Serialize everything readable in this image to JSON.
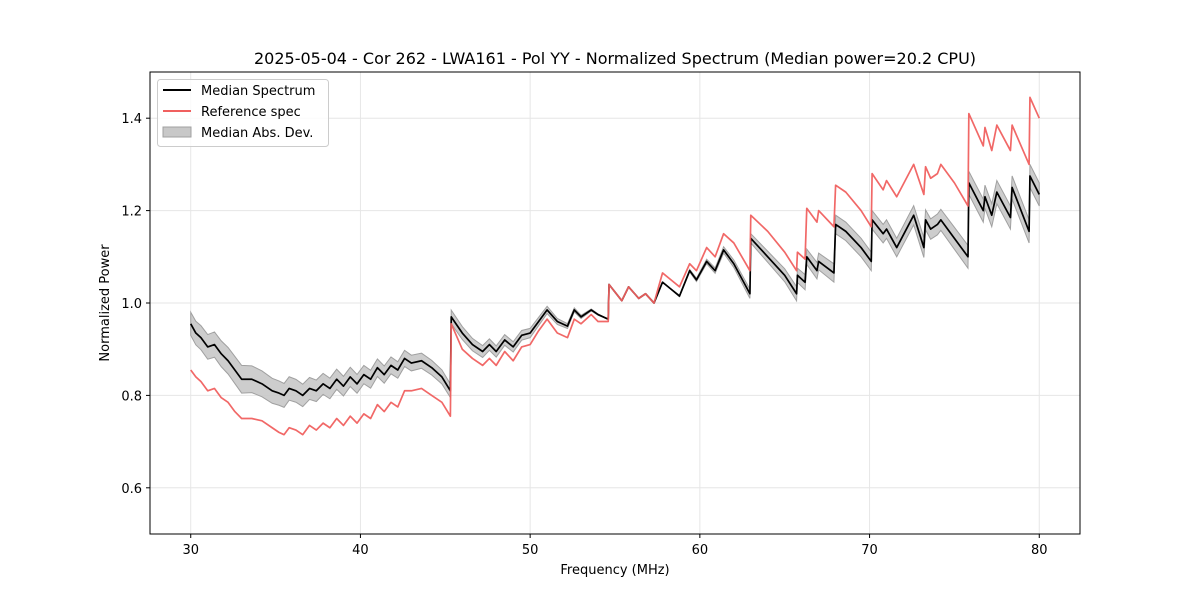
{
  "chart_data": {
    "type": "line",
    "title": "2025-05-04 - Cor 262 - LWA161 - Pol YY - Normalized Spectrum (Median power=20.2 CPU)",
    "xlabel": "Frequency (MHz)",
    "ylabel": "Normalized Power",
    "xlim": [
      27.6,
      82.4
    ],
    "ylim": [
      0.5,
      1.5
    ],
    "xticks": [
      30,
      40,
      50,
      60,
      70,
      80
    ],
    "yticks": [
      0.6,
      0.8,
      1.0,
      1.2,
      1.4
    ],
    "xtick_labels": [
      "30",
      "40",
      "50",
      "60",
      "70",
      "80"
    ],
    "ytick_labels": [
      "0.6",
      "0.8",
      "1.0",
      "1.2",
      "1.4"
    ],
    "grid": true,
    "legend_position": "top-left",
    "legend": [
      {
        "label": "Median Spectrum",
        "kind": "line",
        "color": "#000000"
      },
      {
        "label": "Reference spec",
        "kind": "line",
        "color": "#f0605f"
      },
      {
        "label": "Median Abs. Dev.",
        "kind": "band",
        "color": "#c8c8c8"
      }
    ],
    "series": [
      {
        "name": "Median Spectrum",
        "color": "#000000",
        "x": [
          30.0,
          30.3,
          30.6,
          31.0,
          31.4,
          31.8,
          32.2,
          32.6,
          33.0,
          33.6,
          34.2,
          34.8,
          35.2,
          35.5,
          35.8,
          36.2,
          36.6,
          37.0,
          37.4,
          37.8,
          38.2,
          38.6,
          39.0,
          39.4,
          39.8,
          40.2,
          40.6,
          41.0,
          41.4,
          41.8,
          42.2,
          42.6,
          43.0,
          43.6,
          44.2,
          44.8,
          45.3,
          45.35,
          46.0,
          46.6,
          47.2,
          47.6,
          48.0,
          48.5,
          49.0,
          49.5,
          50.0,
          50.5,
          51.0,
          51.6,
          52.2,
          52.6,
          53.0,
          53.6,
          54.0,
          54.6,
          54.65,
          55.4,
          55.8,
          56.4,
          56.8,
          57.3,
          57.8,
          58.3,
          58.8,
          59.4,
          59.8,
          60.4,
          60.9,
          61.4,
          62.0,
          62.95,
          63.0,
          64.0,
          65.0,
          65.7,
          65.75,
          66.2,
          66.3,
          66.9,
          67.0,
          67.9,
          68.0,
          68.6,
          69.5,
          70.1,
          70.15,
          70.8,
          71.0,
          71.6,
          72.6,
          73.2,
          73.3,
          73.6,
          74.0,
          74.2,
          75.0,
          75.8,
          75.85,
          76.7,
          76.8,
          77.2,
          77.5,
          78.3,
          78.4,
          79.4,
          79.45,
          80.0
        ],
        "values": [
          0.955,
          0.935,
          0.925,
          0.905,
          0.91,
          0.89,
          0.875,
          0.855,
          0.835,
          0.835,
          0.825,
          0.81,
          0.805,
          0.8,
          0.815,
          0.81,
          0.8,
          0.815,
          0.81,
          0.825,
          0.815,
          0.835,
          0.82,
          0.84,
          0.825,
          0.845,
          0.835,
          0.86,
          0.845,
          0.865,
          0.855,
          0.88,
          0.87,
          0.875,
          0.86,
          0.84,
          0.81,
          0.97,
          0.935,
          0.91,
          0.895,
          0.91,
          0.895,
          0.92,
          0.905,
          0.93,
          0.935,
          0.96,
          0.985,
          0.96,
          0.95,
          0.985,
          0.97,
          0.985,
          0.975,
          0.965,
          1.04,
          1.005,
          1.035,
          1.01,
          1.02,
          1.0,
          1.045,
          1.03,
          1.015,
          1.07,
          1.05,
          1.09,
          1.07,
          1.115,
          1.085,
          1.02,
          1.14,
          1.1,
          1.06,
          1.02,
          1.06,
          1.045,
          1.1,
          1.07,
          1.09,
          1.065,
          1.17,
          1.155,
          1.12,
          1.09,
          1.18,
          1.15,
          1.16,
          1.12,
          1.19,
          1.12,
          1.18,
          1.16,
          1.17,
          1.18,
          1.14,
          1.1,
          1.26,
          1.2,
          1.23,
          1.19,
          1.24,
          1.185,
          1.25,
          1.155,
          1.275,
          1.235
        ]
      },
      {
        "name": "Reference spec",
        "color": "#f0605f",
        "x": [
          30.0,
          30.3,
          30.6,
          31.0,
          31.4,
          31.8,
          32.2,
          32.6,
          33.0,
          33.6,
          34.2,
          34.8,
          35.2,
          35.5,
          35.8,
          36.2,
          36.6,
          37.0,
          37.4,
          37.8,
          38.2,
          38.6,
          39.0,
          39.4,
          39.8,
          40.2,
          40.6,
          41.0,
          41.4,
          41.8,
          42.2,
          42.6,
          43.0,
          43.6,
          44.2,
          44.8,
          45.3,
          45.35,
          46.0,
          46.6,
          47.2,
          47.6,
          48.0,
          48.5,
          49.0,
          49.5,
          50.0,
          50.5,
          51.0,
          51.6,
          52.2,
          52.6,
          53.0,
          53.6,
          54.0,
          54.6,
          54.65,
          55.4,
          55.8,
          56.4,
          56.8,
          57.3,
          57.8,
          58.3,
          58.8,
          59.4,
          59.8,
          60.4,
          60.9,
          61.4,
          62.0,
          62.95,
          63.0,
          64.0,
          65.0,
          65.7,
          65.75,
          66.2,
          66.3,
          66.9,
          67.0,
          67.9,
          68.0,
          68.6,
          69.5,
          70.1,
          70.15,
          70.8,
          71.0,
          71.6,
          72.6,
          73.2,
          73.3,
          73.6,
          74.0,
          74.2,
          75.0,
          75.8,
          75.85,
          76.7,
          76.8,
          77.2,
          77.5,
          78.3,
          78.4,
          79.4,
          79.45,
          80.0
        ],
        "values": [
          0.855,
          0.84,
          0.83,
          0.81,
          0.815,
          0.795,
          0.785,
          0.765,
          0.75,
          0.75,
          0.745,
          0.73,
          0.72,
          0.715,
          0.73,
          0.725,
          0.715,
          0.735,
          0.725,
          0.74,
          0.73,
          0.75,
          0.735,
          0.755,
          0.74,
          0.76,
          0.75,
          0.78,
          0.765,
          0.785,
          0.775,
          0.81,
          0.81,
          0.815,
          0.8,
          0.785,
          0.755,
          0.955,
          0.9,
          0.88,
          0.865,
          0.88,
          0.865,
          0.895,
          0.875,
          0.905,
          0.91,
          0.94,
          0.965,
          0.935,
          0.925,
          0.965,
          0.955,
          0.975,
          0.96,
          0.96,
          1.04,
          1.005,
          1.035,
          1.01,
          1.02,
          1.0,
          1.065,
          1.05,
          1.035,
          1.085,
          1.07,
          1.12,
          1.1,
          1.15,
          1.13,
          1.07,
          1.19,
          1.155,
          1.11,
          1.07,
          1.11,
          1.095,
          1.205,
          1.175,
          1.2,
          1.165,
          1.255,
          1.24,
          1.2,
          1.165,
          1.28,
          1.245,
          1.265,
          1.23,
          1.3,
          1.235,
          1.295,
          1.27,
          1.28,
          1.3,
          1.26,
          1.21,
          1.41,
          1.34,
          1.38,
          1.33,
          1.385,
          1.33,
          1.385,
          1.3,
          1.445,
          1.4
        ]
      }
    ],
    "band": {
      "name": "Median Abs. Dev.",
      "color": "#c8c8c8",
      "edge_color": "#a0a0a0",
      "around_series": "Median Spectrum",
      "half_width_x": [
        30.0,
        33.0,
        36.0,
        40.0,
        45.0,
        50.0,
        54.6,
        58.0,
        63.0,
        68.0,
        72.0,
        76.0,
        80.0
      ],
      "half_width": [
        0.025,
        0.03,
        0.025,
        0.02,
        0.015,
        0.01,
        0.0,
        0.0,
        0.01,
        0.02,
        0.02,
        0.025,
        0.025
      ]
    }
  }
}
